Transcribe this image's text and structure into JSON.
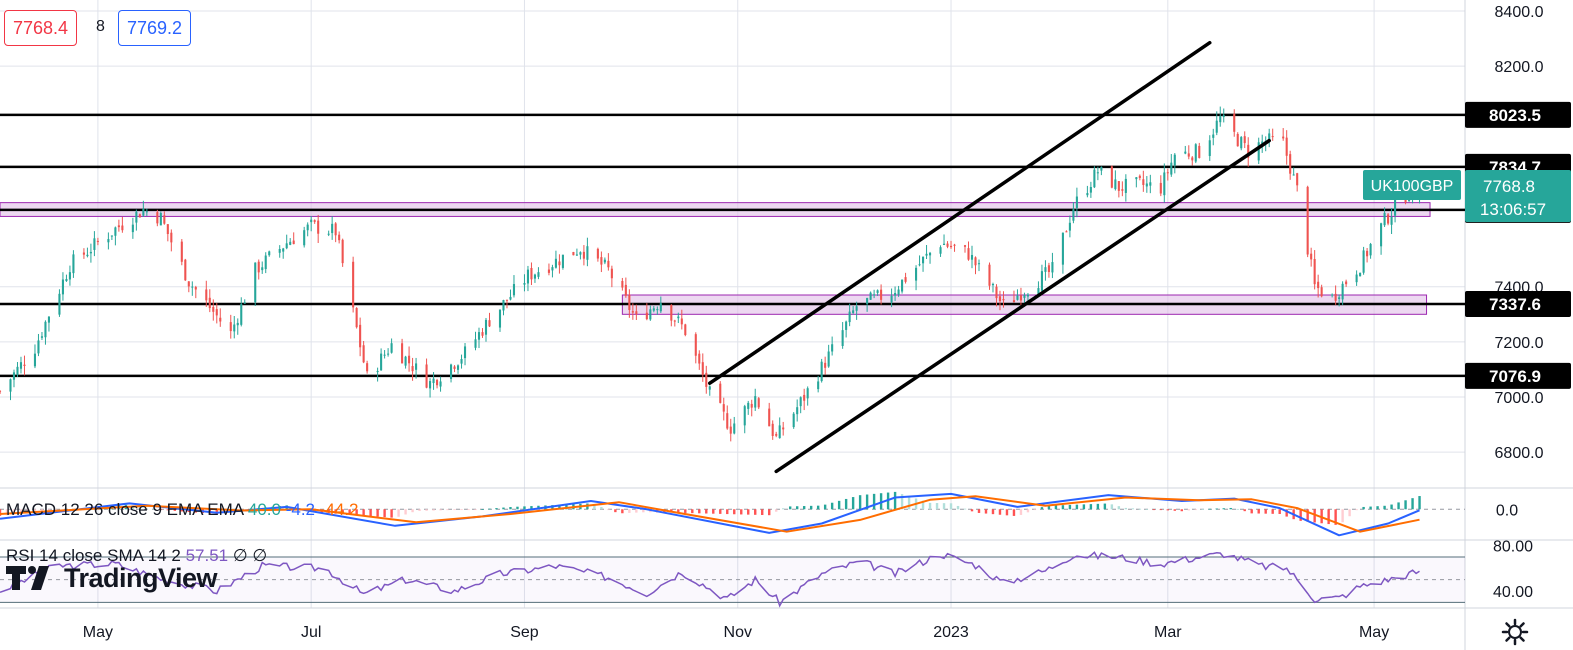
{
  "symbol": "UK100GBP",
  "bid_price": "7768.4",
  "ask_price": "7769.2",
  "spread": "8",
  "current_price": "7768.8",
  "countdown": "13:06:57",
  "colors": {
    "up": "#26a69a",
    "down": "#ef5350",
    "macd_line": "#2962ff",
    "signal_line": "#ff6d00",
    "rsi_line": "#7e57c2",
    "zone_fill": "#e1bee7",
    "zone_border": "#9c27b0"
  },
  "macd_label": {
    "title": "MACD 12 26 close 9 EMA EMA",
    "histogram": "40.0",
    "macd": "-4.2",
    "signal": "-44.2"
  },
  "rsi_label": {
    "title": "RSI 14 close SMA 14 2",
    "value": "57.51",
    "ma1": "∅",
    "ma2": "∅"
  },
  "logo_text": "TradingView",
  "chart_data": {
    "type": "candlestick",
    "y_axis_ticks": [
      "8400.0",
      "8200.0",
      "7400.0",
      "7200.0",
      "7000.0",
      "6800.0"
    ],
    "ylim": [
      6670,
      8440
    ],
    "x_axis_labels": [
      "May",
      "Jul",
      "Sep",
      "Nov",
      "2023",
      "Mar",
      "May"
    ],
    "x_dates": [
      "2022-04-01",
      "2022-06-01",
      "2022-08-01",
      "2022-10-01",
      "2022-12-01",
      "2023-02-01",
      "2023-04-01"
    ],
    "x_range": [
      "2022-03-04",
      "2023-04-27"
    ],
    "horizontal_levels": [
      {
        "value": 8023.5,
        "label": "8023.5"
      },
      {
        "value": 7834.7,
        "label": "7834.7"
      },
      {
        "value": 7678.8,
        "label": "7678.8"
      },
      {
        "value": 7337.6,
        "label": "7337.6"
      },
      {
        "value": 7076.9,
        "label": "7076.9"
      }
    ],
    "zones": [
      {
        "from": "2022-03-04",
        "to": "2023-04-17",
        "low": 7655,
        "high": 7705
      },
      {
        "from": "2022-08-29",
        "to": "2023-04-16",
        "low": 7300,
        "high": 7370
      }
    ],
    "trendlines": [
      {
        "from": [
          "2022-09-23",
          7050
        ],
        "to": [
          "2023-02-13",
          8285
        ]
      },
      {
        "from": [
          "2022-10-12",
          6730
        ],
        "to": [
          "2023-03-02",
          7930
        ]
      }
    ],
    "price_anchors": [
      [
        "2022-03-04",
        7020
      ],
      [
        "2022-03-14",
        7180
      ],
      [
        "2022-03-24",
        7480
      ],
      [
        "2022-04-06",
        7610
      ],
      [
        "2022-04-14",
        7680
      ],
      [
        "2022-04-19",
        7650
      ],
      [
        "2022-04-27",
        7420
      ],
      [
        "2022-05-09",
        7230
      ],
      [
        "2022-05-16",
        7460
      ],
      [
        "2022-05-25",
        7560
      ],
      [
        "2022-06-01",
        7620
      ],
      [
        "2022-06-08",
        7600
      ],
      [
        "2022-06-17",
        7070
      ],
      [
        "2022-06-24",
        7190
      ],
      [
        "2022-07-05",
        7050
      ],
      [
        "2022-07-15",
        7160
      ],
      [
        "2022-07-22",
        7280
      ],
      [
        "2022-08-02",
        7440
      ],
      [
        "2022-08-17",
        7540
      ],
      [
        "2022-08-25",
        7460
      ],
      [
        "2022-09-02",
        7280
      ],
      [
        "2022-09-09",
        7350
      ],
      [
        "2022-09-16",
        7240
      ],
      [
        "2022-09-23",
        7010
      ],
      [
        "2022-09-29",
        6890
      ],
      [
        "2022-10-06",
        7000
      ],
      [
        "2022-10-12",
        6850
      ],
      [
        "2022-10-20",
        7000
      ],
      [
        "2022-10-28",
        7170
      ],
      [
        "2022-11-04",
        7330
      ],
      [
        "2022-11-14",
        7380
      ],
      [
        "2022-11-21",
        7470
      ],
      [
        "2022-11-28",
        7560
      ],
      [
        "2022-12-06",
        7520
      ],
      [
        "2022-12-16",
        7330
      ],
      [
        "2022-12-21",
        7380
      ],
      [
        "2022-12-30",
        7460
      ],
      [
        "2023-01-05",
        7690
      ],
      [
        "2023-01-12",
        7820
      ],
      [
        "2023-01-18",
        7760
      ],
      [
        "2023-01-24",
        7770
      ],
      [
        "2023-01-30",
        7760
      ],
      [
        "2023-02-03",
        7880
      ],
      [
        "2023-02-10",
        7890
      ],
      [
        "2023-02-16",
        8010
      ],
      [
        "2023-02-24",
        7890
      ],
      [
        "2023-03-01",
        7930
      ],
      [
        "2023-03-06",
        7920
      ],
      [
        "2023-03-10",
        7750
      ],
      [
        "2023-03-15",
        7400
      ],
      [
        "2023-03-20",
        7360
      ],
      [
        "2023-03-24",
        7420
      ],
      [
        "2023-03-28",
        7480
      ],
      [
        "2023-04-04",
        7640
      ],
      [
        "2023-04-11",
        7750
      ],
      [
        "2023-04-14",
        7768.8
      ]
    ],
    "macd": {
      "ylim": [
        -130,
        90
      ],
      "zero_label": "0.0",
      "series": [
        {
          "key": "macd",
          "points": [
            [
              "2022-03-04",
              -40
            ],
            [
              "2022-04-10",
              25
            ],
            [
              "2022-05-05",
              -15
            ],
            [
              "2022-05-25",
              10
            ],
            [
              "2022-06-25",
              -70
            ],
            [
              "2022-07-20",
              -30
            ],
            [
              "2022-08-20",
              35
            ],
            [
              "2022-09-05",
              0
            ],
            [
              "2022-10-10",
              -100
            ],
            [
              "2022-10-25",
              -60
            ],
            [
              "2022-11-15",
              50
            ],
            [
              "2022-12-01",
              65
            ],
            [
              "2022-12-20",
              10
            ],
            [
              "2023-01-15",
              60
            ],
            [
              "2023-02-05",
              35
            ],
            [
              "2023-02-20",
              45
            ],
            [
              "2023-03-05",
              5
            ],
            [
              "2023-03-22",
              -110
            ],
            [
              "2023-04-05",
              -60
            ],
            [
              "2023-04-14",
              -4.2
            ]
          ]
        },
        {
          "key": "signal",
          "points": [
            [
              "2022-03-04",
              -20
            ],
            [
              "2022-04-15",
              15
            ],
            [
              "2022-05-12",
              -5
            ],
            [
              "2022-06-01",
              0
            ],
            [
              "2022-07-01",
              -55
            ],
            [
              "2022-07-28",
              -20
            ],
            [
              "2022-08-28",
              30
            ],
            [
              "2022-09-12",
              -10
            ],
            [
              "2022-10-15",
              -95
            ],
            [
              "2022-11-05",
              -45
            ],
            [
              "2022-11-25",
              40
            ],
            [
              "2022-12-08",
              55
            ],
            [
              "2022-12-28",
              15
            ],
            [
              "2023-01-20",
              50
            ],
            [
              "2023-02-10",
              38
            ],
            [
              "2023-02-25",
              42
            ],
            [
              "2023-03-10",
              5
            ],
            [
              "2023-03-28",
              -95
            ],
            [
              "2023-04-14",
              -44.2
            ]
          ]
        }
      ]
    },
    "rsi": {
      "ylim": [
        25,
        85
      ],
      "ticks": [
        "80.00",
        "40.00"
      ],
      "band_upper": 70,
      "band_mid": 50,
      "band_lower": 30,
      "points": [
        [
          "2022-03-04",
          40
        ],
        [
          "2022-03-20",
          62
        ],
        [
          "2022-04-06",
          64
        ],
        [
          "2022-04-20",
          50
        ],
        [
          "2022-05-05",
          40
        ],
        [
          "2022-05-18",
          62
        ],
        [
          "2022-06-05",
          60
        ],
        [
          "2022-06-16",
          37
        ],
        [
          "2022-06-28",
          50
        ],
        [
          "2022-07-12",
          40
        ],
        [
          "2022-07-25",
          55
        ],
        [
          "2022-08-10",
          62
        ],
        [
          "2022-08-25",
          52
        ],
        [
          "2022-09-05",
          38
        ],
        [
          "2022-09-15",
          57
        ],
        [
          "2022-09-28",
          33
        ],
        [
          "2022-10-06",
          50
        ],
        [
          "2022-10-13",
          30
        ],
        [
          "2022-10-25",
          55
        ],
        [
          "2022-11-05",
          66
        ],
        [
          "2022-11-15",
          55
        ],
        [
          "2022-11-28",
          73
        ],
        [
          "2022-12-08",
          63
        ],
        [
          "2022-12-16",
          47
        ],
        [
          "2022-12-28",
          58
        ],
        [
          "2023-01-05",
          72
        ],
        [
          "2023-01-18",
          70
        ],
        [
          "2023-01-30",
          64
        ],
        [
          "2023-02-10",
          70
        ],
        [
          "2023-02-17",
          73
        ],
        [
          "2023-02-28",
          62
        ],
        [
          "2023-03-07",
          60
        ],
        [
          "2023-03-15",
          33
        ],
        [
          "2023-03-22",
          34
        ],
        [
          "2023-03-28",
          44
        ],
        [
          "2023-04-05",
          50
        ],
        [
          "2023-04-14",
          57.51
        ]
      ]
    }
  }
}
